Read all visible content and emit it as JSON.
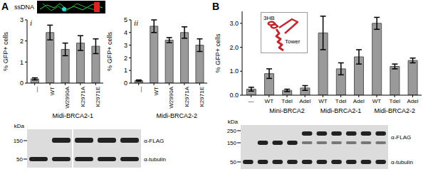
{
  "chart_data": [
    {
      "type": "bar",
      "panel": "A",
      "subpanel": "i",
      "y_label": "% GFP+ cells",
      "categories": [
        "—",
        "WT",
        "W2990A",
        "K2971A",
        "K2971E"
      ],
      "values": [
        0.2,
        2.4,
        1.6,
        1.9,
        1.75
      ],
      "errors": [
        0.05,
        0.35,
        0.3,
        0.35,
        0.35
      ],
      "groups": [
        {
          "label": "Midi-BRCA2-1",
          "from": 1,
          "to": 4
        }
      ],
      "color": "#9a9a9a",
      "ylim": [
        0,
        3
      ],
      "yticks": [
        0,
        1,
        2,
        3
      ]
    },
    {
      "type": "bar",
      "subpanel": "ii",
      "y_label": "% GFP+ cells",
      "categories": [
        "—",
        "WT",
        "W2990A",
        "K2971A",
        "K2971E"
      ],
      "values": [
        0.2,
        4.5,
        3.4,
        4.0,
        3.0
      ],
      "errors": [
        0.05,
        0.5,
        0.2,
        0.45,
        0.5
      ],
      "groups": [
        {
          "label": "Midi-BRCA2-2",
          "from": 1,
          "to": 4
        }
      ],
      "color": "#9a9a9a",
      "ylim": [
        0,
        5
      ],
      "yticks": [
        0,
        1,
        2,
        3,
        4,
        5
      ]
    },
    {
      "type": "bar",
      "panel": "B",
      "y_label": "% GFP+ cells",
      "categories": [
        "—",
        "WT",
        "Tdel",
        "Adel",
        "WT",
        "Tdel",
        "Adel",
        "WT",
        "Tdel",
        "Adel"
      ],
      "values": [
        0.25,
        0.9,
        0.2,
        0.3,
        2.6,
        1.1,
        1.6,
        3.0,
        1.2,
        1.45
      ],
      "errors": [
        0.08,
        0.2,
        0.05,
        0.1,
        0.7,
        0.25,
        0.3,
        0.25,
        0.1,
        0.1
      ],
      "groups": [
        {
          "label": "Mini-BRCA2",
          "from": 1,
          "to": 3
        },
        {
          "label": "Midi-BRCA2-1",
          "from": 4,
          "to": 6
        },
        {
          "label": "Midi-BRCA2-2",
          "from": 7,
          "to": 9
        }
      ],
      "color": "#9a9a9a",
      "ylim": [
        0,
        3.5
      ],
      "yticks": [
        {
          "value": 0,
          "label": "0.0"
        },
        {
          "value": 1,
          "label": "1.0"
        },
        {
          "value": 2,
          "label": "2.0"
        },
        {
          "value": 3,
          "label": "3.0"
        }
      ]
    }
  ],
  "image": {
    "label": "ssDNA"
  },
  "inset": {
    "labels": [
      "3HB",
      "Tower"
    ]
  },
  "blots": [
    {
      "panel": "A",
      "unit": "kDa",
      "markers": [
        150,
        50
      ],
      "antibodies": [
        "α-FLAG",
        "α-tubulin"
      ]
    },
    {
      "panel": "B",
      "unit": "kDa",
      "markers": [
        250,
        150,
        50
      ],
      "antibodies": [
        "α-FLAG",
        "α-tubulin"
      ]
    }
  ]
}
